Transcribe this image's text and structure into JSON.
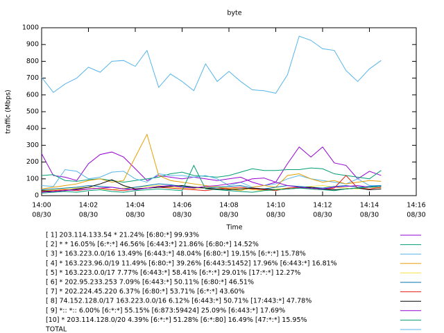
{
  "chart_data": {
    "type": "line",
    "title": "byte",
    "x_label": "Time",
    "y_label": "traffic (Mbps)",
    "x": [
      840,
      840.5,
      841,
      841.5,
      842,
      842.5,
      843,
      843.5,
      844,
      844.5,
      845,
      845.5,
      846,
      846.5,
      847,
      847.5,
      848,
      848.5,
      849,
      849.5,
      850,
      850.5,
      851,
      851.5,
      852,
      852.5,
      853,
      853.5,
      854,
      854.5
    ],
    "xlim": [
      840,
      856
    ],
    "xticks": [
      {
        "value": 840,
        "label": [
          "14:00",
          "08/30"
        ]
      },
      {
        "value": 842,
        "label": [
          "14:02",
          "08/30"
        ]
      },
      {
        "value": 844,
        "label": [
          "14:04",
          "08/30"
        ]
      },
      {
        "value": 846,
        "label": [
          "14:06",
          "08/30"
        ]
      },
      {
        "value": 848,
        "label": [
          "14:08",
          "08/30"
        ]
      },
      {
        "value": 850,
        "label": [
          "14:10",
          "08/30"
        ]
      },
      {
        "value": 852,
        "label": [
          "14:12",
          "08/30"
        ]
      },
      {
        "value": 854,
        "label": [
          "14:14",
          "08/30"
        ]
      },
      {
        "value": 856,
        "label": [
          "14:16",
          "08/30"
        ]
      }
    ],
    "ylim": [
      0,
      1000
    ],
    "yticks": [
      0,
      100,
      200,
      300,
      400,
      500,
      600,
      700,
      800,
      900,
      1000
    ],
    "series": [
      {
        "name": "[ 1] 203.114.133.54 * 21.24% [6:80:*] 99.93%",
        "color": "#9400d3",
        "values": [
          250,
          120,
          110,
          90,
          190,
          245,
          260,
          230,
          160,
          90,
          120,
          110,
          100,
          110,
          100,
          90,
          100,
          110,
          80,
          60,
          80,
          190,
          290,
          230,
          290,
          195,
          180,
          100,
          145,
          120
        ]
      },
      {
        "name": "[ 2] * * 16.05% [6:*:*] 46.56% [6:443:*] 21.86% [6:80:*] 14.52%",
        "color": "#009e73",
        "values": [
          120,
          125,
          90,
          85,
          95,
          100,
          90,
          80,
          90,
          100,
          110,
          130,
          140,
          120,
          115,
          110,
          120,
          140,
          160,
          150,
          150,
          155,
          155,
          165,
          160,
          130,
          120,
          110,
          100,
          150
        ]
      },
      {
        "name": "[ 3] * 163.223.0.0/16 13.49% [6:443:*] 48.04% [6:80:*] 19.15% [6:*:*] 15.78%",
        "color": "#56b4e9",
        "values": [
          60,
          55,
          155,
          145,
          100,
          110,
          140,
          145,
          100,
          80,
          130,
          120,
          120,
          110,
          120,
          100,
          60,
          80,
          50,
          60,
          70,
          100,
          120,
          100,
          90,
          80,
          70,
          100,
          60,
          60
        ]
      },
      {
        "name": "[ 4] * 163.223.96.0/19 11.49% [6:80:*] 39.26% [6:443:51452] 17.96% [6:443:*] 16.81%",
        "color": "#e69f00",
        "values": [
          40,
          50,
          60,
          70,
          90,
          100,
          80,
          90,
          230,
          365,
          120,
          90,
          80,
          70,
          60,
          50,
          40,
          30,
          50,
          60,
          50,
          120,
          130,
          100,
          80,
          90,
          70,
          80,
          90,
          85
        ]
      },
      {
        "name": "[ 5] * 163.223.0.0/17 7.77% [6:443:*] 58.41% [6:*:*] 29.01% [17:*:*] 12.27%",
        "color": "#f0e442",
        "values": [
          30,
          35,
          40,
          45,
          50,
          40,
          35,
          45,
          50,
          55,
          60,
          50,
          45,
          40,
          50,
          55,
          45,
          40,
          35,
          30,
          40,
          45,
          50,
          55,
          60,
          50,
          45,
          40,
          50,
          45
        ]
      },
      {
        "name": "[ 6] * 202.95.233.253 7.09% [6:443:*] 50.11% [6:80:*] 46.51%",
        "color": "#0072b2",
        "values": [
          35,
          40,
          45,
          50,
          60,
          55,
          50,
          40,
          50,
          60,
          70,
          65,
          55,
          50,
          45,
          50,
          55,
          60,
          45,
          40,
          50,
          60,
          55,
          50,
          45,
          55,
          60,
          50,
          55,
          60
        ]
      },
      {
        "name": "[ 7] * 202.224.45.220 6.37% [6:80:*] 53.71% [6:*:*] 43.60%",
        "color": "#e51e10",
        "values": [
          25,
          30,
          35,
          30,
          40,
          45,
          35,
          30,
          40,
          45,
          50,
          45,
          40,
          35,
          30,
          40,
          45,
          50,
          40,
          35,
          30,
          45,
          50,
          40,
          35,
          45,
          120,
          45,
          40,
          50
        ]
      },
      {
        "name": "[ 8] 74.152.128.0/17 163.223.0.0/16 6.12% [6:443:*] 50.71% [17:443:*] 47.78%",
        "color": "#000000",
        "values": [
          30,
          25,
          30,
          40,
          50,
          70,
          95,
          60,
          40,
          45,
          50,
          55,
          60,
          50,
          45,
          40,
          35,
          40,
          45,
          40,
          35,
          40,
          45,
          50,
          40,
          35,
          40,
          45,
          35,
          40
        ]
      },
      {
        "name": "[ 9] *:: *:: 6.00% [6:*:*] 55.15% [6:873:59424] 25.09% [6:443:*] 17.69%",
        "color": "#9400d3",
        "values": [
          20,
          25,
          30,
          35,
          40,
          45,
          50,
          40,
          35,
          45,
          55,
          60,
          50,
          45,
          55,
          60,
          70,
          80,
          100,
          105,
          80,
          60,
          50,
          45,
          40,
          50,
          55,
          60,
          50,
          55
        ]
      },
      {
        "name": "[10] * 203.114.128.0/20 4.39% [6:*:*] 51.28% [6:*:80] 16.49% [47:*:*] 15.95%",
        "color": "#009e73",
        "values": [
          15,
          20,
          25,
          20,
          30,
          35,
          25,
          20,
          30,
          35,
          40,
          35,
          30,
          180,
          40,
          35,
          30,
          25,
          20,
          30,
          35,
          40,
          45,
          40,
          35,
          30,
          40,
          45,
          50,
          55
        ]
      },
      {
        "name": "TOTAL",
        "color": "#56b4e9",
        "values": [
          705,
          615,
          665,
          700,
          765,
          735,
          800,
          805,
          770,
          865,
          645,
          725,
          680,
          625,
          785,
          680,
          740,
          680,
          630,
          625,
          610,
          720,
          950,
          925,
          875,
          865,
          745,
          680,
          755,
          805
        ]
      }
    ]
  }
}
